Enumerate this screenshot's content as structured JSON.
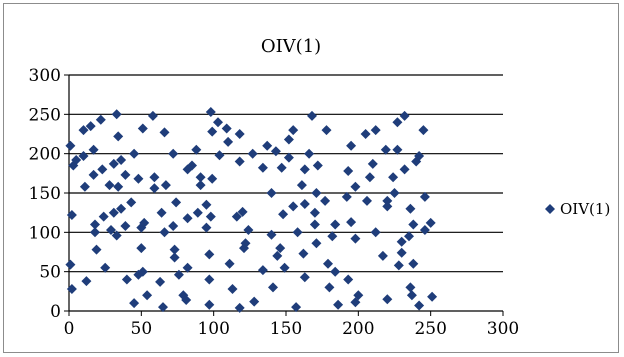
{
  "chart_data": {
    "type": "scatter",
    "title": "OIV(1)",
    "xlabel": "",
    "ylabel": "",
    "xlim": [
      0,
      300
    ],
    "ylim": [
      0,
      300
    ],
    "x_ticks": [
      "0",
      "50",
      "100",
      "150",
      "200",
      "250",
      "300"
    ],
    "y_ticks": [
      "0",
      "50",
      "100",
      "150",
      "200",
      "250",
      "300"
    ],
    "grid": "horizontal",
    "legend_position": "right",
    "series": [
      {
        "name": "OIV(1)",
        "color": "#1f3d7a",
        "marker": "diamond",
        "points": [
          [
            1,
            210
          ],
          [
            2,
            122
          ],
          [
            1,
            59
          ],
          [
            2,
            28
          ],
          [
            3,
            185
          ],
          [
            5,
            192
          ],
          [
            10,
            230
          ],
          [
            10,
            197
          ],
          [
            11,
            158
          ],
          [
            12,
            38
          ],
          [
            15,
            235
          ],
          [
            17,
            205
          ],
          [
            17,
            173
          ],
          [
            18,
            110
          ],
          [
            18,
            100
          ],
          [
            19,
            78
          ],
          [
            22,
            243
          ],
          [
            23,
            180
          ],
          [
            24,
            120
          ],
          [
            25,
            55
          ],
          [
            28,
            160
          ],
          [
            29,
            103
          ],
          [
            31,
            125
          ],
          [
            31,
            187
          ],
          [
            33,
            250
          ],
          [
            34,
            222
          ],
          [
            34,
            158
          ],
          [
            33,
            96
          ],
          [
            36,
            192
          ],
          [
            36,
            130
          ],
          [
            39,
            173
          ],
          [
            39,
            108
          ],
          [
            40,
            40
          ],
          [
            43,
            138
          ],
          [
            45,
            10
          ],
          [
            45,
            200
          ],
          [
            48,
            46
          ],
          [
            48,
            168
          ],
          [
            50,
            80
          ],
          [
            50,
            106
          ],
          [
            51,
            232
          ],
          [
            51,
            50
          ],
          [
            52,
            112
          ],
          [
            54,
            20
          ],
          [
            58,
            248
          ],
          [
            59,
            170
          ],
          [
            59,
            156
          ],
          [
            63,
            37
          ],
          [
            64,
            125
          ],
          [
            66,
            227
          ],
          [
            66,
            100
          ],
          [
            65,
            5
          ],
          [
            67,
            160
          ],
          [
            72,
            200
          ],
          [
            72,
            108
          ],
          [
            73,
            78
          ],
          [
            73,
            68
          ],
          [
            74,
            138
          ],
          [
            76,
            46
          ],
          [
            79,
            20
          ],
          [
            81,
            14
          ],
          [
            82,
            180
          ],
          [
            82,
            118
          ],
          [
            82,
            55
          ],
          [
            85,
            185
          ],
          [
            88,
            205
          ],
          [
            89,
            125
          ],
          [
            91,
            170
          ],
          [
            91,
            160
          ],
          [
            95,
            106
          ],
          [
            95,
            135
          ],
          [
            97,
            40
          ],
          [
            97,
            8
          ],
          [
            97,
            72
          ],
          [
            98,
            120
          ],
          [
            98,
            253
          ],
          [
            99,
            228
          ],
          [
            99,
            168
          ],
          [
            103,
            240
          ],
          [
            104,
            198
          ],
          [
            109,
            232
          ],
          [
            110,
            215
          ],
          [
            111,
            60
          ],
          [
            113,
            28
          ],
          [
            116,
            120
          ],
          [
            118,
            190
          ],
          [
            118,
            225
          ],
          [
            118,
            4
          ],
          [
            120,
            126
          ],
          [
            121,
            80
          ],
          [
            122,
            86
          ],
          [
            124,
            103
          ],
          [
            127,
            200
          ],
          [
            128,
            12
          ],
          [
            134,
            182
          ],
          [
            134,
            52
          ],
          [
            137,
            210
          ],
          [
            140,
            150
          ],
          [
            140,
            97
          ],
          [
            141,
            30
          ],
          [
            143,
            203
          ],
          [
            144,
            70
          ],
          [
            146,
            80
          ],
          [
            147,
            182
          ],
          [
            148,
            123
          ],
          [
            149,
            55
          ],
          [
            152,
            218
          ],
          [
            152,
            195
          ],
          [
            155,
            230
          ],
          [
            155,
            133
          ],
          [
            157,
            5
          ],
          [
            158,
            100
          ],
          [
            161,
            160
          ],
          [
            162,
            73
          ],
          [
            163,
            136
          ],
          [
            163,
            43
          ],
          [
            163,
            180
          ],
          [
            166,
            200
          ],
          [
            168,
            248
          ],
          [
            170,
            110
          ],
          [
            170,
            125
          ],
          [
            171,
            150
          ],
          [
            171,
            86
          ],
          [
            172,
            185
          ],
          [
            177,
            140
          ],
          [
            178,
            230
          ],
          [
            179,
            60
          ],
          [
            180,
            30
          ],
          [
            182,
            95
          ],
          [
            184,
            110
          ],
          [
            184,
            50
          ],
          [
            186,
            8
          ],
          [
            192,
            145
          ],
          [
            193,
            178
          ],
          [
            193,
            40
          ],
          [
            195,
            113
          ],
          [
            195,
            210
          ],
          [
            198,
            11
          ],
          [
            198,
            92
          ],
          [
            198,
            158
          ],
          [
            200,
            20
          ],
          [
            205,
            225
          ],
          [
            206,
            140
          ],
          [
            208,
            170
          ],
          [
            210,
            187
          ],
          [
            212,
            100
          ],
          [
            212,
            230
          ],
          [
            217,
            70
          ],
          [
            219,
            205
          ],
          [
            220,
            140
          ],
          [
            220,
            133
          ],
          [
            220,
            15
          ],
          [
            224,
            170
          ],
          [
            225,
            150
          ],
          [
            227,
            240
          ],
          [
            227,
            205
          ],
          [
            228,
            58
          ],
          [
            230,
            88
          ],
          [
            230,
            74
          ],
          [
            232,
            248
          ],
          [
            232,
            180
          ],
          [
            235,
            95
          ],
          [
            236,
            30
          ],
          [
            236,
            130
          ],
          [
            237,
            20
          ],
          [
            238,
            110
          ],
          [
            238,
            60
          ],
          [
            240,
            190
          ],
          [
            242,
            7
          ],
          [
            242,
            197
          ],
          [
            245,
            230
          ],
          [
            246,
            103
          ],
          [
            246,
            145
          ],
          [
            250,
            112
          ],
          [
            251,
            18
          ]
        ]
      }
    ]
  }
}
